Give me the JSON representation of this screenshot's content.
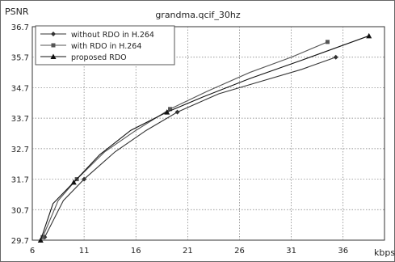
{
  "chart_data": {
    "type": "line",
    "title": "grandma.qcif_30hz",
    "ylabel": "PSNR",
    "xlabel": "kbps",
    "xlim": [
      6,
      40
    ],
    "ylim": [
      29.7,
      36.7
    ],
    "x_ticks": [
      6,
      11,
      16,
      21,
      26,
      31,
      36
    ],
    "y_ticks": [
      29.7,
      30.7,
      31.7,
      32.7,
      33.7,
      34.7,
      35.7,
      36.7
    ],
    "grid": true,
    "legend_position": "top-left",
    "series": [
      {
        "name": "without RDO in H.264",
        "color": "#333333",
        "marker": "diamond",
        "x": [
          7.2,
          9.0,
          11.0,
          14.0,
          17.0,
          20.0,
          24.0,
          28.0,
          32.0,
          35.3
        ],
        "y": [
          29.8,
          31.0,
          31.7,
          32.6,
          33.3,
          33.9,
          34.5,
          34.9,
          35.3,
          35.7
        ]
      },
      {
        "name": "with RDO in H.264",
        "color": "#555555",
        "marker": "square",
        "x": [
          7.0,
          8.5,
          10.3,
          13.0,
          16.0,
          19.3,
          23.0,
          27.0,
          31.0,
          34.5
        ],
        "y": [
          29.8,
          31.0,
          31.7,
          32.6,
          33.3,
          34.0,
          34.6,
          35.2,
          35.7,
          36.2
        ]
      },
      {
        "name": "proposed RDO",
        "color": "#111111",
        "marker": "triangle",
        "x": [
          6.8,
          8.0,
          10.0,
          12.5,
          15.5,
          19.0,
          22.5,
          27.0,
          32.0,
          38.5
        ],
        "y": [
          29.7,
          30.9,
          31.6,
          32.5,
          33.3,
          33.9,
          34.4,
          35.0,
          35.6,
          36.4
        ]
      }
    ]
  }
}
